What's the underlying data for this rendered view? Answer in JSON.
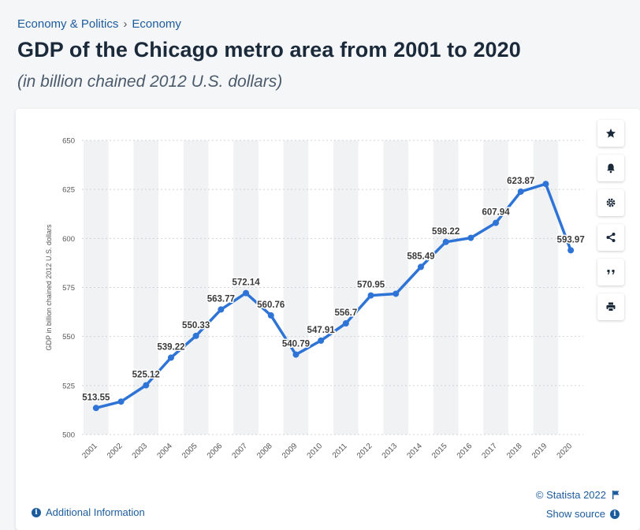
{
  "breadcrumb": {
    "parent": "Economy & Politics",
    "separator": "›",
    "current": "Economy"
  },
  "title": "GDP of the Chicago metro area from 2001 to 2020",
  "subtitle": "(in billion chained 2012 U.S. dollars)",
  "toolbar": {
    "icons": [
      "star-icon",
      "bell-icon",
      "gear-icon",
      "share-icon",
      "quote-icon",
      "print-icon"
    ]
  },
  "footer": {
    "additional_info": "Additional Information",
    "copyright": "© Statista 2022",
    "show_source": "Show source"
  },
  "colors": {
    "line": "#2e74d6",
    "link": "#1c5b9c",
    "band": "#f1f2f4"
  },
  "chart_data": {
    "type": "line",
    "title": "",
    "xlabel": "",
    "ylabel": "GDP in billion chained 2012 U.S. dollars",
    "ylim": [
      500,
      650
    ],
    "yticks": [
      500,
      525,
      550,
      575,
      600,
      625,
      650
    ],
    "grid": true,
    "categories": [
      "2001",
      "2002",
      "2003",
      "2004",
      "2005",
      "2006",
      "2007",
      "2008",
      "2009",
      "2010",
      "2011",
      "2012",
      "2013",
      "2014",
      "2015",
      "2016",
      "2017",
      "2018",
      "2019",
      "2020"
    ],
    "values": [
      513.55,
      516.8,
      525.12,
      539.22,
      550.33,
      563.77,
      572.14,
      560.76,
      540.79,
      547.91,
      556.7,
      570.95,
      571.8,
      585.49,
      598.22,
      600.3,
      607.94,
      623.87,
      627.8,
      593.97
    ],
    "data_labels": [
      "513.55",
      "",
      "525.12",
      "539.22",
      "550.33",
      "563.77",
      "572.14",
      "560.76",
      "540.79",
      "547.91",
      "556.7",
      "570.95",
      "",
      "585.49",
      "598.22",
      "",
      "607.94",
      "623.87",
      "",
      "593.97"
    ]
  }
}
